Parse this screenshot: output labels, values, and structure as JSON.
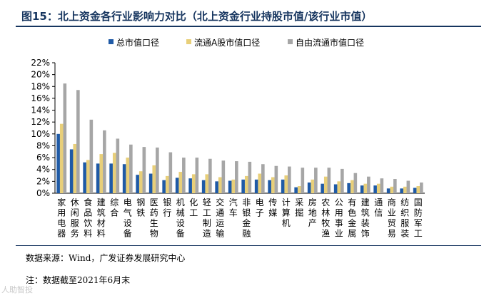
{
  "header": {
    "title": "图15：北上资金各行业影响力对比（北上资金行业持股市值/该行业市值）"
  },
  "footer": {
    "source": "数据来源：Wind，广发证券发展研究中心",
    "note": "注：数据截至2021年6月末",
    "watermark": "人助智投"
  },
  "chart_data": {
    "type": "bar",
    "title": "",
    "xlabel": "",
    "ylabel": "",
    "ylim": [
      0,
      22
    ],
    "yticks": [
      "0%",
      "2%",
      "4%",
      "6%",
      "8%",
      "10%",
      "12%",
      "14%",
      "16%",
      "18%",
      "20%",
      "22%"
    ],
    "grid": false,
    "legend_position": "top",
    "categories": [
      "家用电器",
      "休闲服务",
      "食品饮料",
      "建筑材料",
      "综合",
      "电气设备",
      "钢铁",
      "医药生物",
      "银行",
      "机械设备",
      "化工",
      "轻工制造",
      "交通运输",
      "汽车",
      "非银金融",
      "电子",
      "传媒",
      "计算机",
      "采掘",
      "房地产",
      "农林牧渔",
      "公用事业",
      "有色金属",
      "建筑装饰",
      "通信",
      "商业贸易",
      "纺织服装",
      "国防军工"
    ],
    "series": [
      {
        "name": "总市值口径",
        "color": "#1f5aa6",
        "values": [
          10.0,
          7.4,
          5.2,
          5.0,
          5.0,
          4.9,
          3.1,
          3.3,
          2.2,
          2.6,
          2.5,
          2.2,
          2.0,
          2.1,
          2.3,
          2.3,
          2.2,
          2.3,
          1.0,
          1.8,
          1.6,
          1.5,
          1.7,
          1.3,
          1.3,
          0.8,
          0.8,
          0.9
        ]
      },
      {
        "name": "流通A股市值口径",
        "color": "#e8cf79",
        "values": [
          11.7,
          8.3,
          5.6,
          6.6,
          6.8,
          6.0,
          3.7,
          4.7,
          2.9,
          3.6,
          3.2,
          3.2,
          2.7,
          2.3,
          2.9,
          3.3,
          2.7,
          3.0,
          1.2,
          2.3,
          2.8,
          2.0,
          2.2,
          1.6,
          1.6,
          1.1,
          1.1,
          1.2
        ]
      },
      {
        "name": "自由流通市值口径",
        "color": "#a6a6a6",
        "values": [
          18.5,
          17.4,
          12.4,
          10.6,
          9.2,
          8.2,
          7.8,
          7.7,
          6.9,
          6.0,
          6.0,
          5.8,
          5.5,
          5.4,
          5.3,
          4.9,
          4.6,
          4.5,
          4.3,
          4.3,
          4.3,
          4.1,
          3.4,
          2.8,
          2.5,
          2.4,
          2.1,
          1.8
        ]
      }
    ]
  }
}
